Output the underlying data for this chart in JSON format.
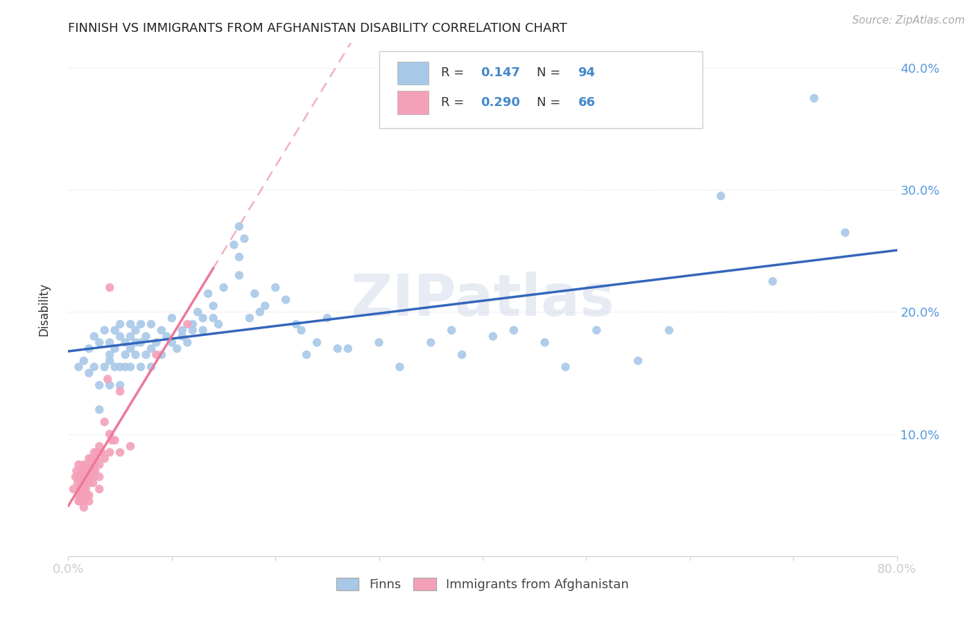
{
  "title": "FINNISH VS IMMIGRANTS FROM AFGHANISTAN DISABILITY CORRELATION CHART",
  "source": "Source: ZipAtlas.com",
  "ylabel": "Disability",
  "legend_label1": "Finns",
  "legend_label2": "Immigrants from Afghanistan",
  "watermark": "ZIPatlas",
  "xlim": [
    0.0,
    0.8
  ],
  "ylim": [
    0.0,
    0.42
  ],
  "finns_color": "#a8c8e8",
  "afghan_color": "#f4a0b8",
  "trendline1_color": "#3366bb",
  "trendline2_color": "#ee7799",
  "trendline_dash_color": "#f0b0c0",
  "tick_color": "#5599dd",
  "label_color": "#333333",
  "grid_color": "#e0e0e0",
  "legend_text_dark": "#333333",
  "legend_text_blue": "#4488cc",
  "finns_scatter": [
    [
      0.01,
      0.155
    ],
    [
      0.015,
      0.16
    ],
    [
      0.02,
      0.17
    ],
    [
      0.02,
      0.15
    ],
    [
      0.025,
      0.18
    ],
    [
      0.025,
      0.155
    ],
    [
      0.03,
      0.14
    ],
    [
      0.03,
      0.175
    ],
    [
      0.03,
      0.12
    ],
    [
      0.035,
      0.155
    ],
    [
      0.035,
      0.185
    ],
    [
      0.04,
      0.165
    ],
    [
      0.04,
      0.175
    ],
    [
      0.04,
      0.14
    ],
    [
      0.04,
      0.16
    ],
    [
      0.045,
      0.155
    ],
    [
      0.045,
      0.185
    ],
    [
      0.045,
      0.17
    ],
    [
      0.05,
      0.14
    ],
    [
      0.05,
      0.18
    ],
    [
      0.05,
      0.155
    ],
    [
      0.05,
      0.19
    ],
    [
      0.055,
      0.165
    ],
    [
      0.055,
      0.175
    ],
    [
      0.055,
      0.155
    ],
    [
      0.06,
      0.18
    ],
    [
      0.06,
      0.155
    ],
    [
      0.06,
      0.19
    ],
    [
      0.06,
      0.17
    ],
    [
      0.065,
      0.185
    ],
    [
      0.065,
      0.175
    ],
    [
      0.065,
      0.165
    ],
    [
      0.07,
      0.175
    ],
    [
      0.07,
      0.19
    ],
    [
      0.07,
      0.155
    ],
    [
      0.075,
      0.165
    ],
    [
      0.075,
      0.18
    ],
    [
      0.08,
      0.155
    ],
    [
      0.08,
      0.17
    ],
    [
      0.08,
      0.19
    ],
    [
      0.085,
      0.175
    ],
    [
      0.09,
      0.165
    ],
    [
      0.09,
      0.185
    ],
    [
      0.095,
      0.18
    ],
    [
      0.1,
      0.195
    ],
    [
      0.1,
      0.175
    ],
    [
      0.105,
      0.17
    ],
    [
      0.11,
      0.185
    ],
    [
      0.11,
      0.18
    ],
    [
      0.115,
      0.175
    ],
    [
      0.12,
      0.19
    ],
    [
      0.12,
      0.185
    ],
    [
      0.125,
      0.2
    ],
    [
      0.13,
      0.195
    ],
    [
      0.13,
      0.185
    ],
    [
      0.135,
      0.215
    ],
    [
      0.14,
      0.195
    ],
    [
      0.14,
      0.205
    ],
    [
      0.145,
      0.19
    ],
    [
      0.15,
      0.22
    ],
    [
      0.16,
      0.255
    ],
    [
      0.165,
      0.27
    ],
    [
      0.165,
      0.245
    ],
    [
      0.165,
      0.23
    ],
    [
      0.17,
      0.26
    ],
    [
      0.175,
      0.195
    ],
    [
      0.18,
      0.215
    ],
    [
      0.185,
      0.2
    ],
    [
      0.19,
      0.205
    ],
    [
      0.2,
      0.22
    ],
    [
      0.21,
      0.21
    ],
    [
      0.22,
      0.19
    ],
    [
      0.225,
      0.185
    ],
    [
      0.23,
      0.165
    ],
    [
      0.24,
      0.175
    ],
    [
      0.25,
      0.195
    ],
    [
      0.26,
      0.17
    ],
    [
      0.27,
      0.17
    ],
    [
      0.3,
      0.175
    ],
    [
      0.32,
      0.155
    ],
    [
      0.35,
      0.175
    ],
    [
      0.37,
      0.185
    ],
    [
      0.38,
      0.165
    ],
    [
      0.41,
      0.18
    ],
    [
      0.43,
      0.185
    ],
    [
      0.46,
      0.175
    ],
    [
      0.48,
      0.155
    ],
    [
      0.51,
      0.185
    ],
    [
      0.55,
      0.16
    ],
    [
      0.58,
      0.185
    ],
    [
      0.63,
      0.295
    ],
    [
      0.68,
      0.225
    ],
    [
      0.72,
      0.375
    ],
    [
      0.75,
      0.265
    ]
  ],
  "afghan_scatter": [
    [
      0.005,
      0.055
    ],
    [
      0.007,
      0.065
    ],
    [
      0.008,
      0.07
    ],
    [
      0.009,
      0.06
    ],
    [
      0.01,
      0.065
    ],
    [
      0.01,
      0.075
    ],
    [
      0.01,
      0.05
    ],
    [
      0.01,
      0.045
    ],
    [
      0.012,
      0.07
    ],
    [
      0.012,
      0.06
    ],
    [
      0.012,
      0.055
    ],
    [
      0.012,
      0.045
    ],
    [
      0.013,
      0.065
    ],
    [
      0.013,
      0.05
    ],
    [
      0.014,
      0.06
    ],
    [
      0.014,
      0.055
    ],
    [
      0.015,
      0.075
    ],
    [
      0.015,
      0.065
    ],
    [
      0.015,
      0.055
    ],
    [
      0.015,
      0.05
    ],
    [
      0.015,
      0.045
    ],
    [
      0.015,
      0.04
    ],
    [
      0.016,
      0.07
    ],
    [
      0.016,
      0.06
    ],
    [
      0.017,
      0.065
    ],
    [
      0.017,
      0.055
    ],
    [
      0.018,
      0.075
    ],
    [
      0.018,
      0.065
    ],
    [
      0.018,
      0.05
    ],
    [
      0.019,
      0.06
    ],
    [
      0.02,
      0.08
    ],
    [
      0.02,
      0.07
    ],
    [
      0.02,
      0.06
    ],
    [
      0.02,
      0.05
    ],
    [
      0.02,
      0.045
    ],
    [
      0.021,
      0.075
    ],
    [
      0.022,
      0.08
    ],
    [
      0.022,
      0.07
    ],
    [
      0.022,
      0.065
    ],
    [
      0.023,
      0.075
    ],
    [
      0.024,
      0.07
    ],
    [
      0.024,
      0.06
    ],
    [
      0.025,
      0.085
    ],
    [
      0.025,
      0.075
    ],
    [
      0.025,
      0.065
    ],
    [
      0.026,
      0.07
    ],
    [
      0.027,
      0.08
    ],
    [
      0.028,
      0.085
    ],
    [
      0.03,
      0.09
    ],
    [
      0.03,
      0.075
    ],
    [
      0.03,
      0.065
    ],
    [
      0.03,
      0.055
    ],
    [
      0.032,
      0.085
    ],
    [
      0.035,
      0.11
    ],
    [
      0.035,
      0.08
    ],
    [
      0.038,
      0.145
    ],
    [
      0.04,
      0.1
    ],
    [
      0.04,
      0.085
    ],
    [
      0.04,
      0.22
    ],
    [
      0.042,
      0.095
    ],
    [
      0.045,
      0.095
    ],
    [
      0.05,
      0.085
    ],
    [
      0.05,
      0.135
    ],
    [
      0.06,
      0.09
    ],
    [
      0.085,
      0.165
    ],
    [
      0.115,
      0.19
    ]
  ]
}
